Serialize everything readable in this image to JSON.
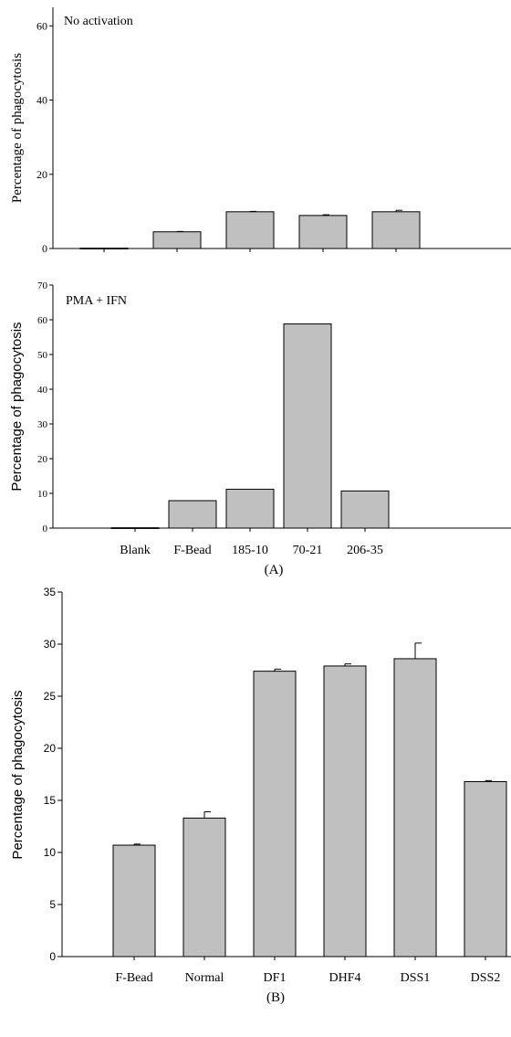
{
  "chart_data": [
    {
      "type": "bar",
      "annotation": "No activation",
      "ylabel": "Percentage of phagocytosis",
      "ylim": [
        0,
        65
      ],
      "yticks": [
        0,
        20,
        40,
        60
      ],
      "categories": [
        "Blank",
        "F-Bead",
        "185-10",
        "70-21",
        "206-35"
      ],
      "values": [
        0.1,
        4.5,
        9.9,
        8.9,
        9.9
      ],
      "errors": [
        0,
        0.1,
        0.1,
        0.2,
        0.4
      ],
      "bar_color": "#c0c0c0"
    },
    {
      "type": "bar",
      "annotation": "PMA + IFN",
      "ylabel": "Percentage of phagocytosis",
      "ylim": [
        0,
        70
      ],
      "yticks": [
        0,
        10,
        20,
        30,
        40,
        50,
        60,
        70
      ],
      "categories": [
        "Blank",
        "F-Bead",
        "185-10",
        "70-21",
        "206-35"
      ],
      "values": [
        0.1,
        7.9,
        11.2,
        58.8,
        10.7
      ],
      "errors": [
        0,
        0,
        0,
        0,
        0
      ],
      "bar_color": "#c0c0c0",
      "panel_label": "(A)"
    },
    {
      "type": "bar",
      "ylabel": "Percentage of phagocytosis",
      "ylim": [
        0,
        35
      ],
      "yticks": [
        0,
        5,
        10,
        15,
        20,
        25,
        30,
        35
      ],
      "categories": [
        "F-Bead",
        "Normal",
        "DF1",
        "DHF4",
        "DSS1",
        "DSS2"
      ],
      "values": [
        10.7,
        13.3,
        27.4,
        27.9,
        28.6,
        16.8
      ],
      "errors": [
        0.1,
        0.6,
        0.2,
        0.2,
        1.5,
        0.1
      ],
      "bar_color": "#c0c0c0",
      "panel_label": "(B)"
    }
  ]
}
